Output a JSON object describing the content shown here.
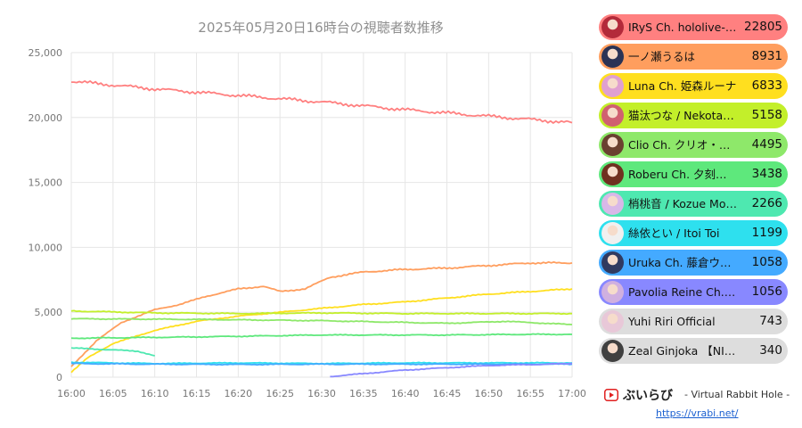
{
  "chart_data": {
    "type": "line",
    "title": "2025年05月20日16時台の視聴者数推移",
    "xlabel": "",
    "ylabel": "",
    "x_ticks": [
      "16:00",
      "16:05",
      "16:10",
      "16:15",
      "16:20",
      "16:25",
      "16:30",
      "16:35",
      "16:40",
      "16:45",
      "16:50",
      "16:55",
      "17:00"
    ],
    "y_ticks": [
      "0",
      "5,000",
      "10,000",
      "15,000",
      "20,000",
      "25,000"
    ],
    "xlim": [
      "16:00",
      "17:00"
    ],
    "ylim": [
      0,
      25000
    ],
    "grid": true,
    "legend_position": "right",
    "series": [
      {
        "name": "IRyS Ch. hololive-EN",
        "value": "22805",
        "color": "#ff8080",
        "start": "16:00",
        "end": "17:00",
        "points": [
          [
            "16:00",
            22800
          ],
          [
            "16:10",
            22200
          ],
          [
            "16:20",
            21700
          ],
          [
            "16:30",
            21200
          ],
          [
            "16:40",
            20600
          ],
          [
            "16:50",
            20100
          ],
          [
            "17:00",
            19600
          ]
        ]
      },
      {
        "name": "一ノ瀬うるは",
        "value": "8931",
        "color": "#ff9e5e",
        "start": "16:00",
        "end": "17:00",
        "points": [
          [
            "16:00",
            800
          ],
          [
            "16:03",
            2800
          ],
          [
            "16:06",
            4200
          ],
          [
            "16:10",
            5200
          ],
          [
            "16:13",
            5600
          ],
          [
            "16:16",
            6200
          ],
          [
            "16:20",
            6800
          ],
          [
            "16:23",
            7000
          ],
          [
            "16:25",
            6600
          ],
          [
            "16:28",
            6800
          ],
          [
            "16:31",
            7700
          ],
          [
            "16:35",
            8100
          ],
          [
            "16:40",
            8300
          ],
          [
            "16:45",
            8400
          ],
          [
            "16:50",
            8600
          ],
          [
            "16:55",
            8800
          ],
          [
            "17:00",
            8800
          ]
        ]
      },
      {
        "name": "Luna Ch. 姫森ルーナ",
        "value": "6833",
        "color": "#ffdf1f",
        "start": "16:00",
        "end": "17:00",
        "points": [
          [
            "16:00",
            400
          ],
          [
            "16:02",
            1500
          ],
          [
            "16:05",
            2600
          ],
          [
            "16:10",
            3600
          ],
          [
            "16:15",
            4300
          ],
          [
            "16:20",
            4700
          ],
          [
            "16:25",
            5000
          ],
          [
            "16:30",
            5300
          ],
          [
            "16:35",
            5600
          ],
          [
            "16:40",
            5800
          ],
          [
            "16:45",
            6100
          ],
          [
            "16:50",
            6400
          ],
          [
            "16:55",
            6600
          ],
          [
            "17:00",
            6800
          ]
        ]
      },
      {
        "name": "猫汰つな / Nekota Tsuna",
        "value": "5158",
        "color": "#c3ef2a",
        "start": "16:00",
        "end": "17:00",
        "points": [
          [
            "16:00",
            5100
          ],
          [
            "16:10",
            4950
          ],
          [
            "16:20",
            4900
          ],
          [
            "16:30",
            4950
          ],
          [
            "16:40",
            4900
          ],
          [
            "16:50",
            4900
          ],
          [
            "17:00",
            4900
          ]
        ]
      },
      {
        "name": "Clio Ch. クリオ・ホロライブ",
        "value": "4495",
        "color": "#8ee86a",
        "start": "16:00",
        "end": "17:00",
        "points": [
          [
            "16:00",
            4500
          ],
          [
            "16:15",
            4450
          ],
          [
            "16:30",
            4350
          ],
          [
            "16:45",
            4150
          ],
          [
            "16:52",
            4300
          ],
          [
            "17:00",
            4050
          ]
        ]
      },
      {
        "name": "Roberu Ch. 夕刻ロベル",
        "value": "3438",
        "color": "#5ee87c",
        "start": "16:00",
        "end": "17:00",
        "points": [
          [
            "16:00",
            3000
          ],
          [
            "16:15",
            3100
          ],
          [
            "16:30",
            3250
          ],
          [
            "16:45",
            3250
          ],
          [
            "16:55",
            3300
          ],
          [
            "17:00",
            3300
          ]
        ]
      },
      {
        "name": "梢桃音 / Kozue Mone",
        "value": "2266",
        "color": "#4ee8b0",
        "start": "16:00",
        "end": "16:10",
        "points": [
          [
            "16:00",
            2250
          ],
          [
            "16:05",
            2100
          ],
          [
            "16:08",
            2000
          ],
          [
            "16:10",
            1650
          ]
        ]
      },
      {
        "name": "絲依とい / Itoi Toi",
        "value": "1199",
        "color": "#2ee0ee",
        "start": "16:00",
        "end": "17:00",
        "points": [
          [
            "16:00",
            1150
          ],
          [
            "16:10",
            1050
          ],
          [
            "16:20",
            1100
          ],
          [
            "16:30",
            1050
          ],
          [
            "16:40",
            1100
          ],
          [
            "16:50",
            1100
          ],
          [
            "17:00",
            1100
          ]
        ]
      },
      {
        "name": "Uruka Ch. 藤倉ウルカ",
        "value": "1058",
        "color": "#44aaff",
        "start": "16:00",
        "end": "17:00",
        "points": [
          [
            "16:00",
            1050
          ],
          [
            "16:10",
            1000
          ],
          [
            "16:20",
            980
          ],
          [
            "16:30",
            1000
          ],
          [
            "16:40",
            1000
          ],
          [
            "16:50",
            1000
          ],
          [
            "17:00",
            1000
          ]
        ]
      },
      {
        "name": "Pavolia Reine Ch. hololive-ID",
        "value": "1056",
        "color": "#8888ff",
        "start": "16:31",
        "end": "17:00",
        "points": [
          [
            "16:31",
            50
          ],
          [
            "16:40",
            550
          ],
          [
            "16:50",
            900
          ],
          [
            "17:00",
            1050
          ]
        ]
      },
      {
        "name": "Yuhi Riri Official",
        "value": "743",
        "color": "#dddddd",
        "start": "",
        "end": "",
        "points": []
      },
      {
        "name": "Zeal Ginjoka 【NIJISANJI EN】",
        "value": "340",
        "color": "#dddddd",
        "start": "",
        "end": "",
        "points": []
      }
    ]
  },
  "footer": {
    "brand_name": "ぶいらび",
    "brand_sub": "- Virtual Rabbit Hole -",
    "url": "https://vrabi.net/"
  }
}
